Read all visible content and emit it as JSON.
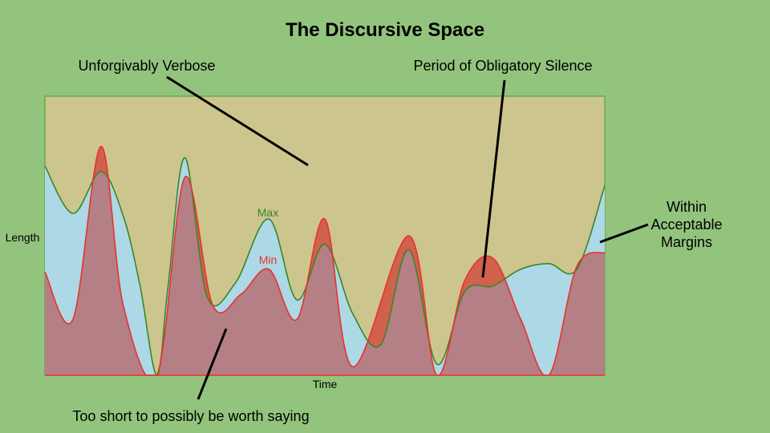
{
  "title": "The Discursive Space",
  "annotations": {
    "verbose": "Unforgivably Verbose",
    "silence": "Period of Obligatory Silence",
    "within_1": "Within",
    "within_2": "Acceptable",
    "within_3": "Margins",
    "too_short": "Too short to possibly be worth saying"
  },
  "axis": {
    "x_label": "Time",
    "y_label": "Length"
  },
  "series_labels": {
    "max": "Max",
    "min": "Min"
  },
  "colors": {
    "background": "#93c47d",
    "verbose_region": "#cdc58e",
    "acceptable_region": "#add8e6",
    "short_region": "#b57f86",
    "silence_region": "#d0624d",
    "max_line": "#38862a",
    "min_line": "#e8322d",
    "frame_line": "#4a9a2e",
    "pointer": "#000000"
  },
  "chart_data": {
    "type": "area",
    "xlabel": "Time",
    "ylabel": "Length",
    "series": [
      {
        "name": "Max",
        "points": [
          [
            0,
            75
          ],
          [
            5,
            58
          ],
          [
            10,
            73
          ],
          [
            14,
            57
          ],
          [
            17,
            32
          ],
          [
            20,
            0
          ],
          [
            22,
            32
          ],
          [
            25,
            78
          ],
          [
            29,
            28
          ],
          [
            34,
            33
          ],
          [
            40,
            56
          ],
          [
            45,
            27
          ],
          [
            50,
            47
          ],
          [
            55,
            22
          ],
          [
            60,
            11
          ],
          [
            65,
            45
          ],
          [
            70,
            4
          ],
          [
            75,
            30
          ],
          [
            80,
            32
          ],
          [
            85,
            38
          ],
          [
            90,
            40
          ],
          [
            95,
            38
          ],
          [
            100,
            68
          ]
        ]
      },
      {
        "name": "Min",
        "points": [
          [
            0,
            37
          ],
          [
            5,
            20
          ],
          [
            10,
            82
          ],
          [
            14,
            25
          ],
          [
            20,
            0
          ],
          [
            25,
            71
          ],
          [
            30,
            25
          ],
          [
            35,
            29
          ],
          [
            40,
            38
          ],
          [
            45,
            20
          ],
          [
            50,
            56
          ],
          [
            55,
            3
          ],
          [
            65,
            50
          ],
          [
            70,
            0
          ],
          [
            75,
            34
          ],
          [
            80,
            42
          ],
          [
            85,
            20
          ],
          [
            90,
            0
          ],
          [
            95,
            39
          ],
          [
            100,
            44
          ]
        ]
      }
    ]
  }
}
